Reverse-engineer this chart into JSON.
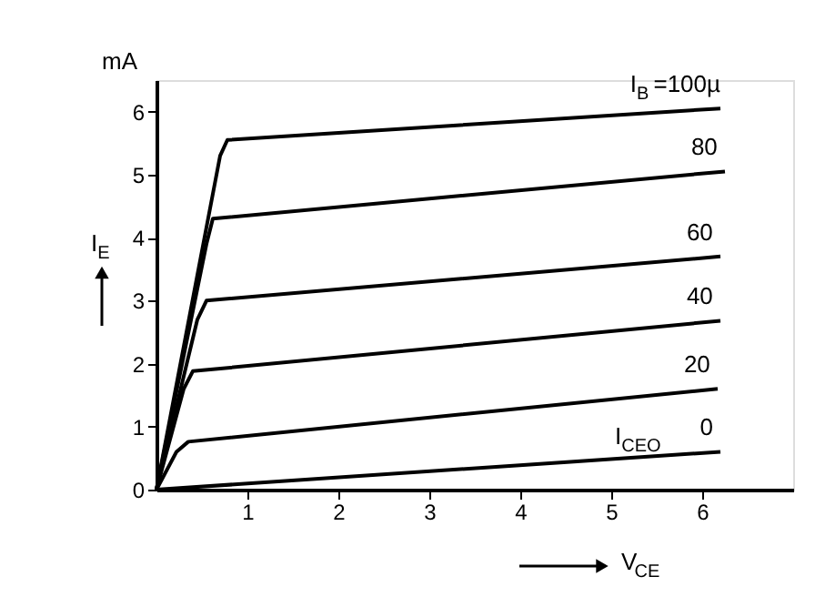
{
  "chart_data": {
    "type": "line",
    "xlabel": "V$_{CE}$",
    "ylabel": "I$_{E}$",
    "xlim": [
      0,
      7
    ],
    "ylim": [
      0,
      6.5
    ],
    "xticks": [
      1,
      2,
      3,
      4,
      5,
      6
    ],
    "yticks": [
      0,
      1,
      2,
      3,
      4,
      5,
      6
    ],
    "grid": false,
    "legend": false,
    "marker": "none",
    "line_style": "solid",
    "series": [
      {
        "name": "I$_{B}$ =100µ",
        "color": "#000000",
        "x": [
          0,
          0.7,
          0.78,
          6.2
        ],
        "values": [
          0,
          5.3,
          5.55,
          6.05
        ]
      },
      {
        "name": "80",
        "color": "#000000",
        "x": [
          0,
          0.55,
          0.62,
          6.25
        ],
        "values": [
          0,
          3.9,
          4.3,
          5.05
        ]
      },
      {
        "name": "60",
        "color": "#000000",
        "x": [
          0,
          0.45,
          0.55,
          6.2
        ],
        "values": [
          0,
          2.7,
          3.0,
          3.7
        ]
      },
      {
        "name": "40",
        "color": "#000000",
        "x": [
          0,
          0.3,
          0.4,
          6.2
        ],
        "values": [
          0,
          1.6,
          1.88,
          2.68
        ]
      },
      {
        "name": "20",
        "color": "#000000",
        "x": [
          0,
          0.22,
          0.35,
          6.17
        ],
        "values": [
          0,
          0.6,
          0.76,
          1.6
        ]
      },
      {
        "name": "0",
        "color": "#000000",
        "x": [
          0,
          6.2
        ],
        "values": [
          0,
          0.6
        ]
      }
    ],
    "annotations": [
      "mA",
      "I$_{CEO}$"
    ]
  }
}
